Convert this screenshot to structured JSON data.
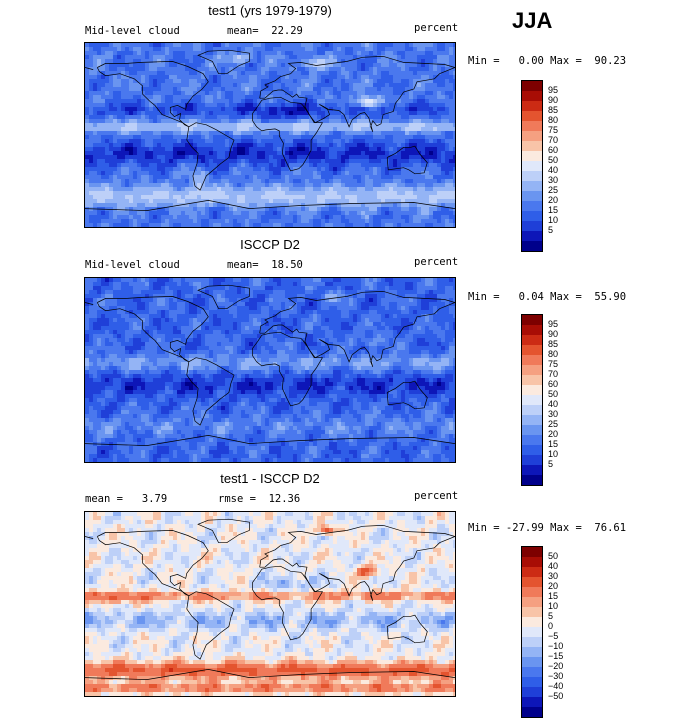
{
  "season": "JJA",
  "palette": {
    "seq": [
      "#00008b",
      "#0d16b8",
      "#1f3fd8",
      "#2f5ee8",
      "#4a78ee",
      "#6a95f0",
      "#94b4f5",
      "#bdd0f8",
      "#e0e8fa",
      "#fbeadf",
      "#f8c4a8",
      "#f5a081",
      "#f07a5a",
      "#e4542f",
      "#cc2b14",
      "#a80d05",
      "#7d0000"
    ],
    "diff": [
      "#00008b",
      "#0d16b8",
      "#1f3fd8",
      "#2f5ee8",
      "#4a78ee",
      "#6a95f0",
      "#94b4f5",
      "#bdd0f8",
      "#e0e8fa",
      "#fbeadf",
      "#f8c4a8",
      "#f5a081",
      "#f07a5a",
      "#e4542f",
      "#cc2b14",
      "#a80d05",
      "#7d0000"
    ]
  },
  "panels": [
    {
      "title": "test1 (yrs 1979-1979)",
      "left_label": "Mid-level cloud",
      "center_label": "mean=  22.29",
      "right_label": "percent",
      "minmax": "Min =   0.00 Max =  90.23",
      "colorbar": {
        "levels": [
          "95",
          "90",
          "85",
          "80",
          "75",
          "70",
          "60",
          "50",
          "40",
          "30",
          "25",
          "20",
          "15",
          "10",
          "5"
        ]
      },
      "chart_data": {
        "type": "heatmap",
        "title": "test1 (yrs 1979-1979)",
        "variable": "Mid-level cloud",
        "units": "percent",
        "mean": 22.29,
        "min": 0.0,
        "max": 90.23
      }
    },
    {
      "title": "ISCCP D2",
      "left_label": "Mid-level cloud",
      "center_label": "mean=  18.50",
      "right_label": "percent",
      "minmax": "Min =   0.04 Max =  55.90",
      "colorbar": {
        "levels": [
          "95",
          "90",
          "85",
          "80",
          "75",
          "70",
          "60",
          "50",
          "40",
          "30",
          "25",
          "20",
          "15",
          "10",
          "5"
        ]
      },
      "chart_data": {
        "type": "heatmap",
        "title": "ISCCP D2",
        "variable": "Mid-level cloud",
        "units": "percent",
        "mean": 18.5,
        "min": 0.04,
        "max": 55.9
      }
    },
    {
      "title": "test1 - ISCCP D2",
      "left_label": "mean =   3.79",
      "center_label": "rmse =  12.36",
      "right_label": "percent",
      "minmax": "Min = -27.99 Max =  76.61",
      "colorbar": {
        "levels": [
          "50",
          "40",
          "30",
          "20",
          "15",
          "10",
          "5",
          "0",
          "−5",
          "−10",
          "−15",
          "−20",
          "−30",
          "−40",
          "−50"
        ]
      },
      "chart_data": {
        "type": "heatmap",
        "title": "test1 - ISCCP D2",
        "units": "percent",
        "mean": 3.79,
        "rmse": 12.36,
        "min": -27.99,
        "max": 76.61
      }
    }
  ]
}
